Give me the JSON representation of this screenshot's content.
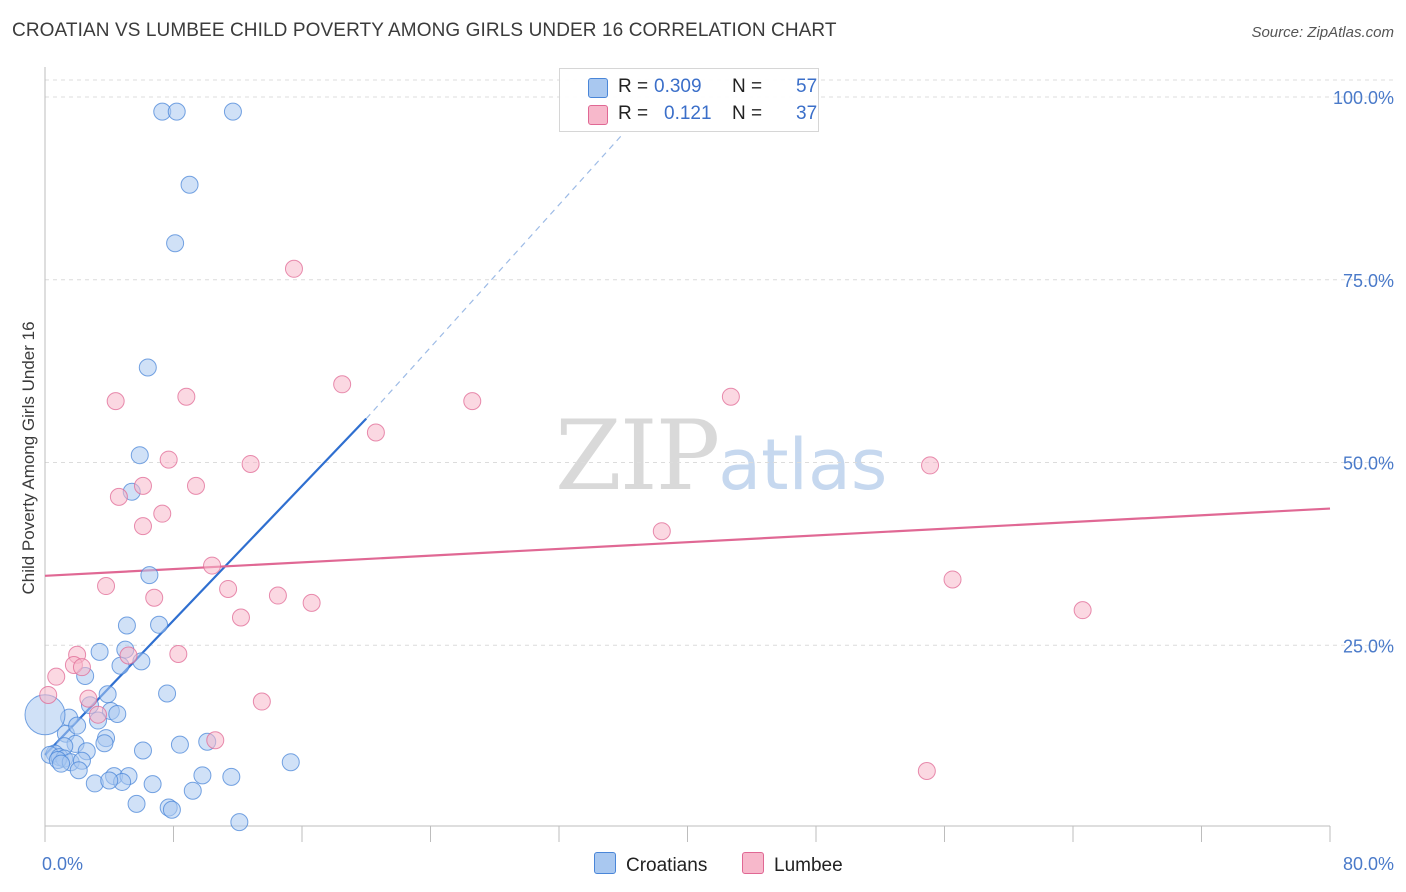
{
  "title": "CROATIAN VS LUMBEE CHILD POVERTY AMONG GIRLS UNDER 16 CORRELATION CHART",
  "source": "Source: ZipAtlas.com",
  "watermark": {
    "zip": "ZIP",
    "atlas": "atlas"
  },
  "legend": {
    "rows": [
      {
        "r_label": "R =",
        "r_value": "0.309",
        "n_label": "N =",
        "n_value": "57",
        "color": "#a9c8f0"
      },
      {
        "r_label": "R =",
        "r_value": "0.121",
        "n_label": "N =",
        "n_value": "37",
        "color": "#f7b8cb"
      }
    ]
  },
  "bottom_legend": [
    {
      "label": "Croatians",
      "color": "#a9c8f0"
    },
    {
      "label": "Lumbee",
      "color": "#f7b8cb"
    }
  ],
  "chart_data": {
    "type": "scatter",
    "title": "CROATIAN VS LUMBEE CHILD POVERTY AMONG GIRLS UNDER 16 CORRELATION CHART",
    "xlabel": "",
    "ylabel": "Child Poverty Among Girls Under 16",
    "xlim": [
      0,
      80
    ],
    "ylim": [
      0,
      100
    ],
    "x_tick_labels": [
      "0.0%",
      "80.0%"
    ],
    "y_tick_labels": [
      "25.0%",
      "50.0%",
      "75.0%",
      "100.0%"
    ],
    "y_ticks": [
      25,
      50,
      75,
      100
    ],
    "series": [
      {
        "name": "Croatians",
        "color": "#4a86d8",
        "fill": "#a9c8f0",
        "points": [
          [
            7.3,
            98.0
          ],
          [
            8.2,
            98.0
          ],
          [
            11.7,
            98.0
          ],
          [
            9.0,
            88.0
          ],
          [
            8.1,
            80.0
          ],
          [
            6.4,
            63.0
          ],
          [
            5.9,
            51.0
          ],
          [
            5.4,
            46.0
          ],
          [
            6.5,
            34.6
          ],
          [
            7.1,
            27.8
          ],
          [
            5.1,
            27.7
          ],
          [
            5.0,
            24.4
          ],
          [
            3.4,
            24.1
          ],
          [
            6.0,
            22.8
          ],
          [
            4.7,
            22.2
          ],
          [
            2.5,
            20.8
          ],
          [
            7.6,
            18.4
          ],
          [
            3.9,
            18.3
          ],
          [
            2.8,
            16.8
          ],
          [
            4.1,
            16.0
          ],
          [
            4.5,
            15.6
          ],
          [
            1.5,
            15.1
          ],
          [
            3.3,
            14.7
          ],
          [
            0.0,
            15.5
          ],
          [
            1.3,
            12.9
          ],
          [
            3.8,
            12.3
          ],
          [
            10.1,
            11.8
          ],
          [
            1.9,
            11.5
          ],
          [
            1.2,
            11.2
          ],
          [
            3.7,
            11.6
          ],
          [
            8.4,
            11.4
          ],
          [
            6.1,
            10.6
          ],
          [
            2.6,
            10.5
          ],
          [
            0.6,
            10.2
          ],
          [
            0.3,
            10.0
          ],
          [
            0.9,
            9.7
          ],
          [
            1.2,
            9.5
          ],
          [
            0.8,
            9.3
          ],
          [
            1.6,
            9.0
          ],
          [
            2.3,
            9.2
          ],
          [
            15.3,
            9.0
          ],
          [
            1.0,
            8.8
          ],
          [
            2.1,
            7.9
          ],
          [
            4.3,
            7.1
          ],
          [
            5.2,
            7.1
          ],
          [
            11.6,
            7.0
          ],
          [
            9.8,
            7.2
          ],
          [
            4.8,
            6.3
          ],
          [
            6.7,
            6.0
          ],
          [
            3.1,
            6.1
          ],
          [
            9.2,
            5.1
          ],
          [
            5.7,
            3.3
          ],
          [
            7.7,
            2.8
          ],
          [
            7.9,
            2.5
          ],
          [
            12.1,
            0.8
          ],
          [
            4.0,
            6.5
          ],
          [
            2.0,
            14.0
          ]
        ],
        "trend": {
          "x0": 0.0,
          "y0": 10.0,
          "x1": 20.0,
          "y1": 56.0,
          "dash_to_x": 36.0,
          "dash_to_y": 95.0
        }
      },
      {
        "name": "Lumbee",
        "color": "#e06894",
        "fill": "#f7b8cb",
        "points": [
          [
            15.5,
            76.5
          ],
          [
            8.8,
            59.0
          ],
          [
            4.4,
            58.4
          ],
          [
            18.5,
            60.7
          ],
          [
            26.6,
            58.4
          ],
          [
            42.7,
            59.0
          ],
          [
            20.6,
            54.1
          ],
          [
            7.7,
            50.4
          ],
          [
            12.8,
            49.8
          ],
          [
            55.1,
            49.6
          ],
          [
            6.1,
            46.8
          ],
          [
            9.4,
            46.8
          ],
          [
            4.6,
            45.3
          ],
          [
            7.3,
            43.0
          ],
          [
            6.1,
            41.3
          ],
          [
            38.4,
            40.6
          ],
          [
            10.4,
            35.9
          ],
          [
            56.5,
            34.0
          ],
          [
            3.8,
            33.1
          ],
          [
            11.4,
            32.7
          ],
          [
            14.5,
            31.8
          ],
          [
            6.8,
            31.5
          ],
          [
            16.6,
            30.8
          ],
          [
            64.6,
            29.8
          ],
          [
            12.2,
            28.8
          ],
          [
            2.0,
            23.7
          ],
          [
            8.3,
            23.8
          ],
          [
            5.2,
            23.6
          ],
          [
            1.8,
            22.3
          ],
          [
            2.3,
            22.0
          ],
          [
            0.7,
            20.7
          ],
          [
            0.2,
            18.2
          ],
          [
            2.7,
            17.7
          ],
          [
            13.5,
            17.3
          ],
          [
            3.3,
            15.5
          ],
          [
            10.6,
            12.0
          ],
          [
            54.9,
            7.8
          ]
        ],
        "trend": {
          "x0": 0.0,
          "y0": 34.5,
          "x1": 80.0,
          "y1": 43.7
        }
      }
    ]
  }
}
